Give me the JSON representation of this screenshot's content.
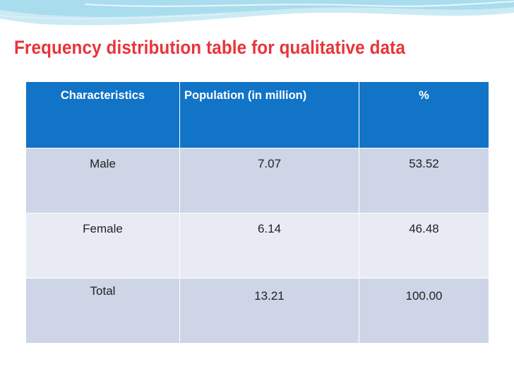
{
  "slide": {
    "title": "Frequency distribution table for qualitative data"
  },
  "colors": {
    "title": "#e8343a",
    "header_bg": "#1174c7",
    "row_dark": "#cdd5e6",
    "row_light": "#e8ebf3",
    "wave_top": "#a9dcec",
    "wave_mid": "#cbeaf4"
  },
  "table": {
    "headers": [
      "Characteristics",
      "Population (in million)",
      "%"
    ],
    "rows": [
      {
        "characteristic": "Male",
        "population": "7.07",
        "percent": "53.52"
      },
      {
        "characteristic": "Female",
        "population": "6.14",
        "percent": "46.48"
      },
      {
        "characteristic": "Total",
        "population": "13.21",
        "percent": "100.00"
      }
    ]
  }
}
